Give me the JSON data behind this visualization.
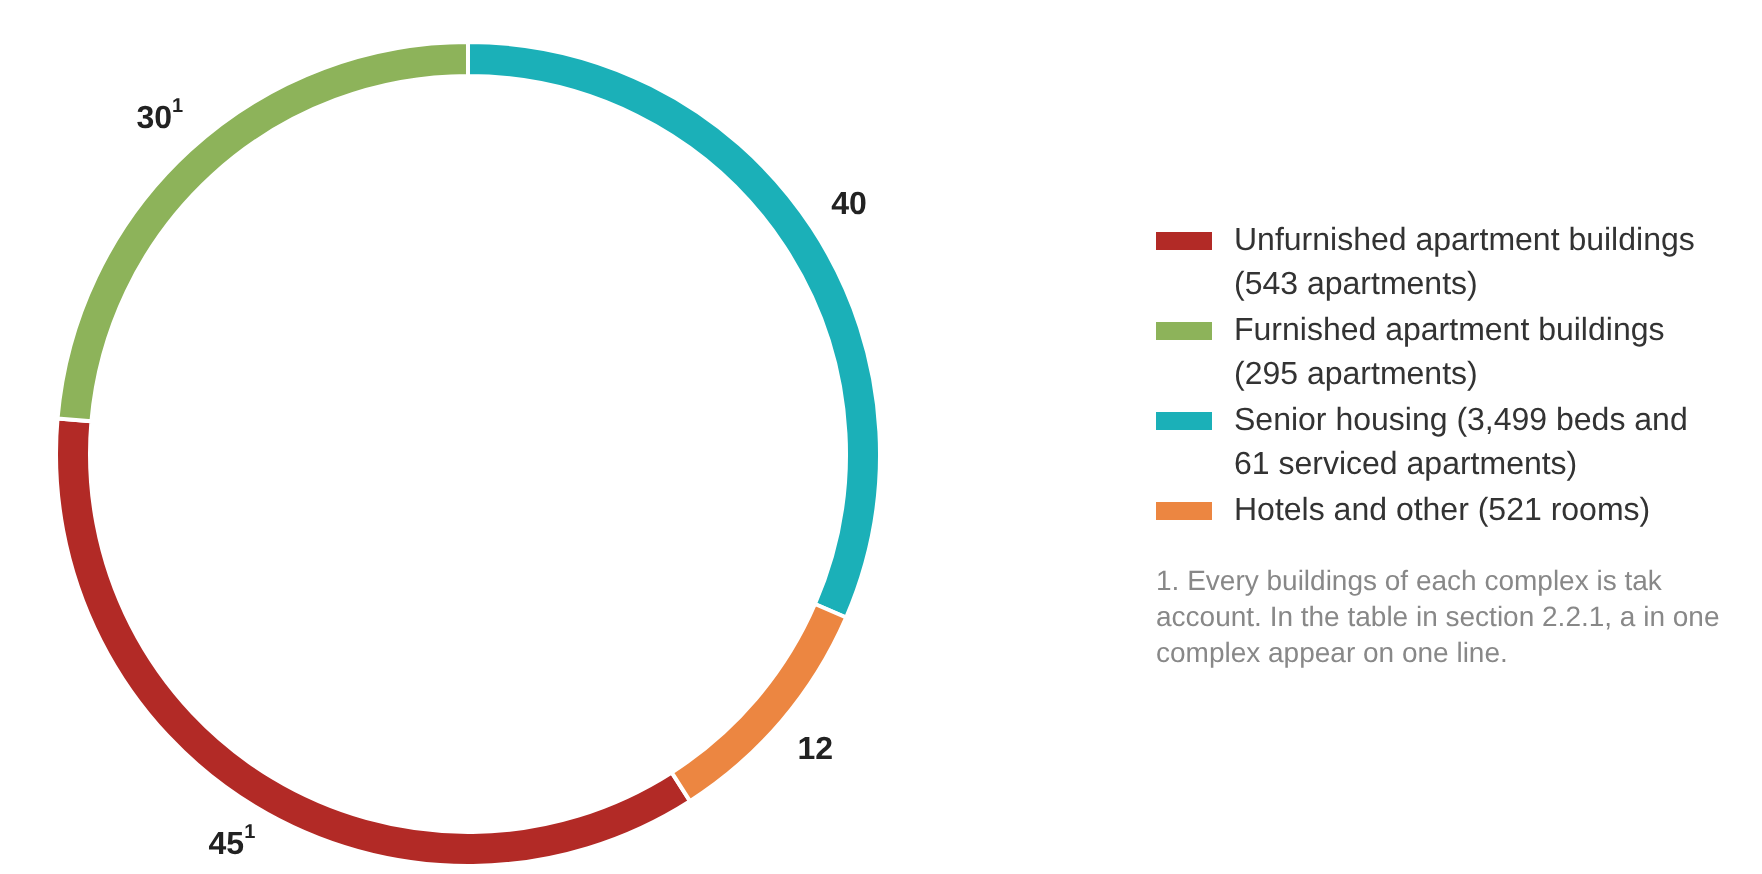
{
  "chart_data": {
    "type": "donut",
    "categories": [
      "Unfurnished apartment buildings (543 apartments)",
      "Furnished apartment buildings (295 apartments)",
      "Senior housing (3,499 beds and 61 serviced apartments)",
      "Hotels and other (521 rooms)"
    ],
    "values": [
      45,
      30,
      40,
      12
    ],
    "colors": [
      "#b22a26",
      "#8db35a",
      "#1bb0b8",
      "#ec8641"
    ],
    "value_labels": [
      "45$^{1}$",
      "30$^{1}$",
      "40",
      "12"
    ],
    "legend": "right",
    "annotations": [
      "1. Every buildings of each complex is tak account. In the table in section 2.2.1, a in one complex appear on one line."
    ]
  }
}
